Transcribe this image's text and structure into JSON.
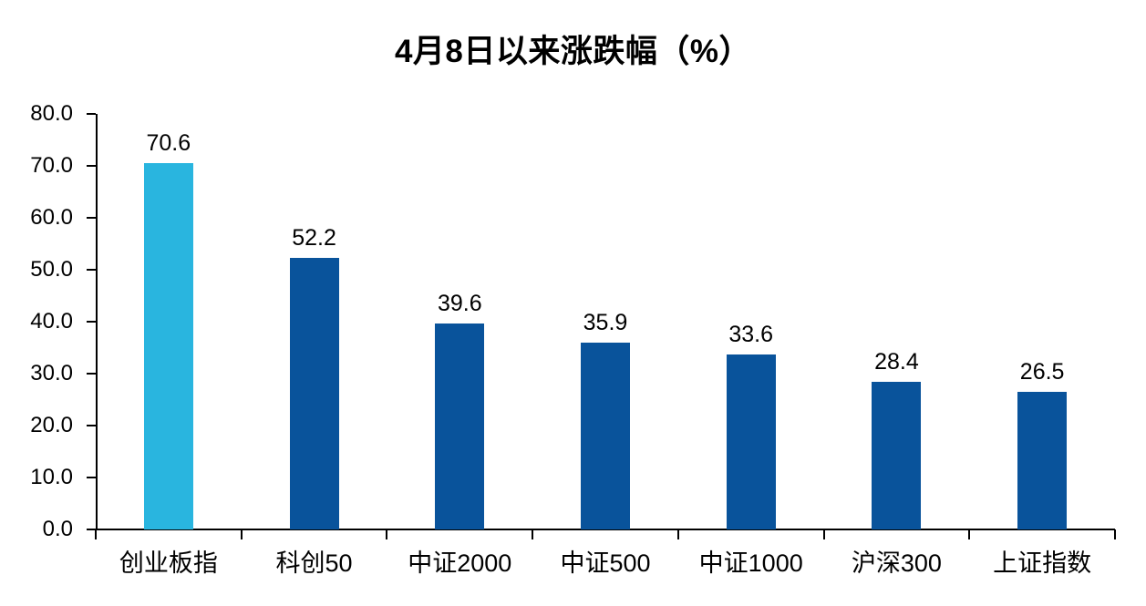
{
  "chart_data": {
    "type": "bar",
    "title": "4月8日以来涨跌幅（%）",
    "categories": [
      "创业板指",
      "科创50",
      "中证2000",
      "中证500",
      "中证1000",
      "沪深300",
      "上证指数"
    ],
    "values": [
      70.6,
      52.2,
      39.6,
      35.9,
      33.6,
      28.4,
      26.5
    ],
    "value_labels": [
      "70.6",
      "52.2",
      "39.6",
      "35.9",
      "33.6",
      "28.4",
      "26.5"
    ],
    "xlabel": "",
    "ylabel": "",
    "ylim": [
      0,
      80
    ],
    "y_tick_step": 10,
    "y_tick_labels": [
      "0.0",
      "10.0",
      "20.0",
      "30.0",
      "40.0",
      "50.0",
      "60.0",
      "70.0",
      "80.0"
    ],
    "grid": false,
    "legend_position": "none",
    "bar_colors": [
      "#29B5DF",
      "#09539B",
      "#09539B",
      "#09539B",
      "#09539B",
      "#09539B",
      "#09539B"
    ],
    "highlight_color": "#29B5DF",
    "base_bar_color": "#09539B",
    "axis_color": "#000000",
    "text_color": "#000000"
  }
}
